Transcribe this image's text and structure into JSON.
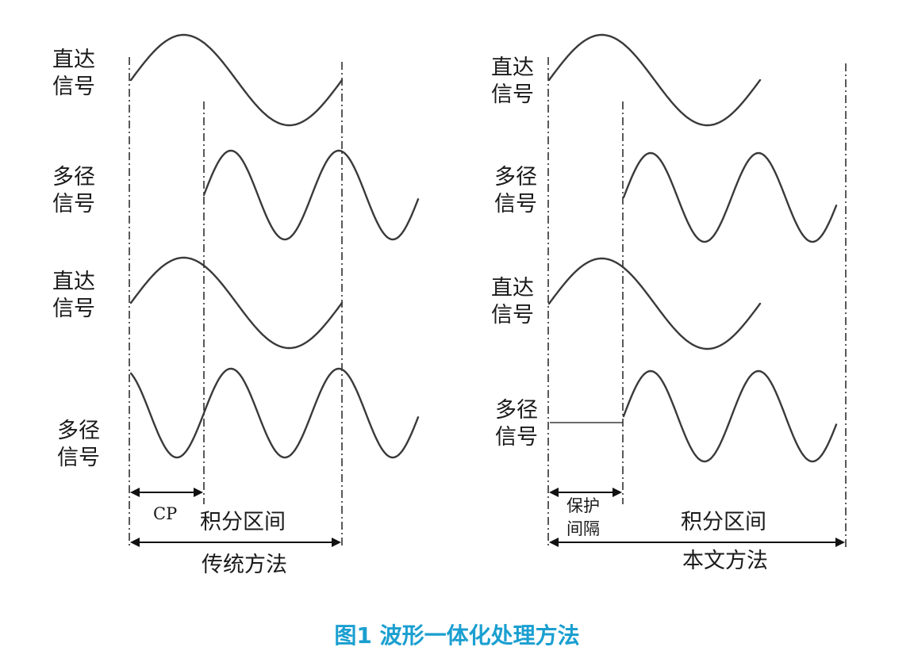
{
  "left_panel": {
    "labels": [
      {
        "line1": "直达",
        "line2": "信号"
      },
      {
        "line1": "多径",
        "line2": "信号"
      },
      {
        "line1": "直达",
        "line2": "信号"
      },
      {
        "line1": "多径",
        "line2": "信号"
      }
    ],
    "cp_label": "CP",
    "integration_label": "积分区间",
    "method_label": "传统方法"
  },
  "right_panel": {
    "labels": [
      {
        "line1": "直达",
        "line2": "信号"
      },
      {
        "line1": "多径",
        "line2": "信号"
      },
      {
        "line1": "直达",
        "line2": "信号"
      },
      {
        "line1": "多径",
        "line2": "信号"
      }
    ],
    "guard_label_line1": "保护",
    "guard_label_line2": "间隔",
    "integration_label": "积分区间",
    "method_label": "本文方法"
  },
  "caption": {
    "prefix": "图1",
    "text": " 波形一体化处理方法"
  }
}
